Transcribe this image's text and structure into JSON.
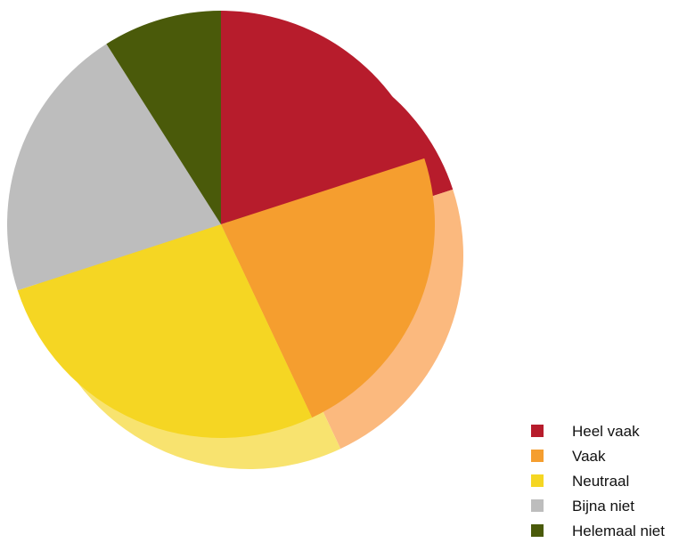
{
  "chart_data": {
    "type": "pie",
    "categories": [
      "Heel vaak",
      "Vaak",
      "Neutraal",
      "Bijna niet",
      "Helemaal niet"
    ],
    "values": [
      20,
      23,
      27,
      21,
      9
    ],
    "unit": "%",
    "colors": [
      "#B71C2C",
      "#F59E2F",
      "#F5D623",
      "#BDBDBD",
      "#4A5A0A"
    ],
    "shadow_colors": [
      "#B71C2C",
      "#FBB97E",
      "#F8E36F",
      "#BDBDBD",
      "#4A5A0A"
    ],
    "legend_placement": "bottom-right",
    "grid": false
  },
  "legend": [
    {
      "label": "Heel vaak",
      "color": "#B71C2C"
    },
    {
      "label": "Vaak",
      "color": "#F59E2F"
    },
    {
      "label": "Neutraal",
      "color": "#F5D623"
    },
    {
      "label": "Bijna niet",
      "color": "#BDBDBD"
    },
    {
      "label": "Helemaal niet",
      "color": "#4A5A0A"
    }
  ]
}
